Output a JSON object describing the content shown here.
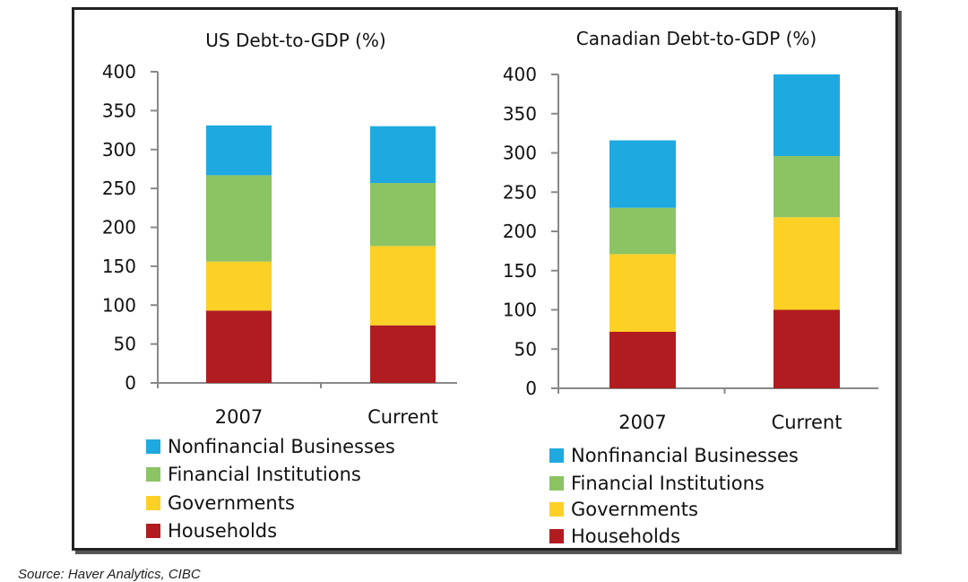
{
  "chart_data": [
    {
      "type": "bar",
      "stacked": true,
      "title": "US Debt-to-GDP (%)",
      "categories": [
        "2007",
        "Current"
      ],
      "ylim": [
        0,
        400
      ],
      "yticks": [
        0,
        50,
        100,
        150,
        200,
        250,
        300,
        350,
        400
      ],
      "series": [
        {
          "name": "Households",
          "color": "#b01c20",
          "values": [
            93,
            74
          ]
        },
        {
          "name": "Governments",
          "color": "#fdd026",
          "values": [
            63,
            102
          ]
        },
        {
          "name": "Financial Institutions",
          "color": "#8cc363",
          "values": [
            111,
            81
          ]
        },
        {
          "name": "Nonfinancial Businesses",
          "color": "#1fa9e1",
          "values": [
            64,
            73
          ]
        }
      ],
      "legend_order": [
        "Nonfinancial Businesses",
        "Financial Institutions",
        "Governments",
        "Households"
      ]
    },
    {
      "type": "bar",
      "stacked": true,
      "title": "Canadian Debt-to-GDP (%)",
      "categories": [
        "2007",
        "Current"
      ],
      "ylim": [
        0,
        400
      ],
      "yticks": [
        0,
        50,
        100,
        150,
        200,
        250,
        300,
        350,
        400
      ],
      "series": [
        {
          "name": "Households",
          "color": "#b01c20",
          "values": [
            72,
            100
          ]
        },
        {
          "name": "Governments",
          "color": "#fdd026",
          "values": [
            99,
            118
          ]
        },
        {
          "name": "Financial Institutions",
          "color": "#8cc363",
          "values": [
            59,
            78
          ]
        },
        {
          "name": "Nonfinancial Businesses",
          "color": "#1fa9e1",
          "values": [
            86,
            104
          ]
        }
      ],
      "legend_order": [
        "Nonfinancial Businesses",
        "Financial Institutions",
        "Governments",
        "Households"
      ]
    }
  ],
  "source": "Source: Haver Analytics, CIBC"
}
